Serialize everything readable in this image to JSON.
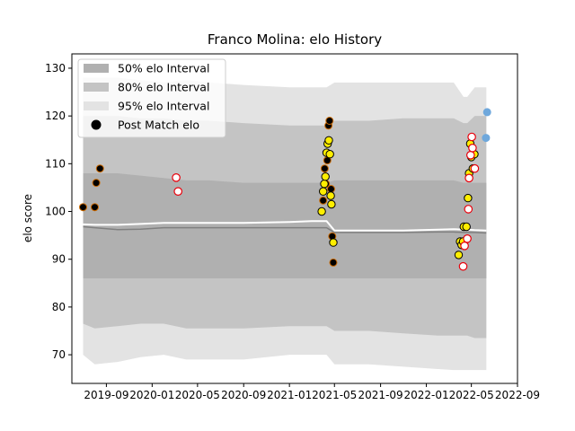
{
  "chart_data": {
    "type": "scatter",
    "title": "Franco Molina: elo History",
    "xlabel": "",
    "ylabel": "elo score",
    "xlim": [
      "2019-06-01",
      "2022-09-01"
    ],
    "ylim": [
      64,
      133
    ],
    "x_ticks": [
      "2019-09-01",
      "2020-01-01",
      "2020-05-01",
      "2020-09-01",
      "2021-01-01",
      "2021-05-01",
      "2021-09-01",
      "2022-01-01",
      "2022-05-01",
      "2022-09-01"
    ],
    "x_tick_labels": [
      "2019-09",
      "2020-01",
      "2020-05",
      "2020-09",
      "2021-01",
      "2021-05",
      "2021-09",
      "2022-01",
      "2022-05",
      "2022-09"
    ],
    "y_ticks": [
      70,
      80,
      90,
      100,
      110,
      120,
      130
    ],
    "legend": {
      "placement": "top-left",
      "entries": [
        {
          "label": "50% elo Interval",
          "color": "#b0b0b0"
        },
        {
          "label": "80% elo Interval",
          "color": "#c4c4c4"
        },
        {
          "label": "95% elo Interval",
          "color": "#e3e3e3"
        },
        {
          "label": "Post Match elo",
          "color": "#000000"
        }
      ]
    },
    "colors": {
      "band95": "#e3e3e3",
      "band80": "#c4c4c4",
      "band50": "#b0b0b0",
      "mean_line": "#ffffff",
      "median_line": "#808080",
      "yellow_fill": "#ffee00",
      "orange_edge": "#cc6a00",
      "red_edge": "#e8000b",
      "projection": "#6fa8dc"
    },
    "band_dates": [
      "2019-07-01",
      "2019-08-01",
      "2019-10-01",
      "2019-12-01",
      "2020-02-01",
      "2020-04-01",
      "2020-06-01",
      "2020-09-01",
      "2021-01-01",
      "2021-03-01",
      "2021-04-10",
      "2021-05-01",
      "2021-08-01",
      "2021-11-01",
      "2022-02-01",
      "2022-03-15",
      "2022-04-10",
      "2022-04-20",
      "2022-05-10",
      "2022-06-10"
    ],
    "band95_upper": [
      128,
      128,
      128,
      127.5,
      127,
      127.5,
      127,
      126.5,
      126,
      126,
      126,
      127,
      127,
      127,
      127,
      127,
      124,
      124,
      126,
      126
    ],
    "band95_lower": [
      70,
      68,
      68.5,
      69.5,
      70,
      69,
      69,
      69,
      70,
      70,
      70,
      68,
      68,
      67.5,
      67,
      66.8,
      66.8,
      66.8,
      66.8,
      66.8
    ],
    "band80_upper": [
      120,
      120,
      120,
      119.5,
      119.5,
      119,
      119,
      118.5,
      118,
      118,
      118,
      119,
      119,
      119.5,
      119.5,
      119.5,
      118.5,
      118.5,
      120,
      120
    ],
    "band80_lower": [
      76.5,
      75.5,
      76,
      76.5,
      76.5,
      75.5,
      75.5,
      75.5,
      76,
      76,
      76,
      75,
      75,
      74.5,
      74,
      74,
      74,
      74,
      73.5,
      73.5
    ],
    "band50_upper": [
      108,
      108,
      108,
      107.5,
      107,
      106.5,
      106.5,
      106,
      106,
      106,
      106,
      106.5,
      106.5,
      106.5,
      106.5,
      106.5,
      106,
      106,
      106,
      106
    ],
    "band50_lower": [
      86,
      86,
      86,
      86,
      86,
      86,
      86,
      86,
      86,
      86,
      86,
      86,
      86,
      86,
      86,
      86,
      86,
      86,
      86,
      86
    ],
    "mean_line": [
      97.3,
      97.2,
      97.2,
      97.4,
      97.6,
      97.6,
      97.6,
      97.6,
      97.8,
      98,
      98,
      96,
      96,
      96,
      96.2,
      96.3,
      96.2,
      96.2,
      96.1,
      96
    ],
    "median_line": [
      96.8,
      96.6,
      96.2,
      96.3,
      96.6,
      96.6,
      96.6,
      96.6,
      96.6,
      96.6,
      96.6,
      95.6,
      95.6,
      95.6,
      95.7,
      95.7,
      95.6,
      95.6,
      95.6,
      95.5
    ],
    "series": [
      {
        "style": "orange-edge",
        "points": [
          {
            "x": "2019-07-01",
            "y": 100.9
          },
          {
            "x": "2019-08-01",
            "y": 100.9
          },
          {
            "x": "2019-08-05",
            "y": 106
          },
          {
            "x": "2019-08-15",
            "y": 109
          },
          {
            "x": "2021-04-01",
            "y": 102.3
          },
          {
            "x": "2021-04-05",
            "y": 109
          },
          {
            "x": "2021-04-08",
            "y": 105.8
          },
          {
            "x": "2021-04-12",
            "y": 110.7
          },
          {
            "x": "2021-04-15",
            "y": 118
          },
          {
            "x": "2021-04-18",
            "y": 119
          },
          {
            "x": "2021-04-22",
            "y": 104.7
          },
          {
            "x": "2021-04-25",
            "y": 94.8
          },
          {
            "x": "2021-04-28",
            "y": 89.3
          }
        ]
      },
      {
        "style": "yellow-black",
        "points": [
          {
            "x": "2021-03-28",
            "y": 100
          },
          {
            "x": "2021-04-01",
            "y": 104.2
          },
          {
            "x": "2021-04-04",
            "y": 105.8
          },
          {
            "x": "2021-04-07",
            "y": 107.3
          },
          {
            "x": "2021-04-10",
            "y": 112.3
          },
          {
            "x": "2021-04-13",
            "y": 114.2
          },
          {
            "x": "2021-04-16",
            "y": 114.9
          },
          {
            "x": "2021-04-19",
            "y": 112
          },
          {
            "x": "2021-04-21",
            "y": 103.3
          },
          {
            "x": "2021-04-23",
            "y": 101.5
          },
          {
            "x": "2021-04-28",
            "y": 93.5
          },
          {
            "x": "2022-03-28",
            "y": 90.9
          },
          {
            "x": "2022-04-01",
            "y": 93.7
          },
          {
            "x": "2022-04-05",
            "y": 93
          },
          {
            "x": "2022-04-09",
            "y": 93.7
          },
          {
            "x": "2022-04-11",
            "y": 96.8
          },
          {
            "x": "2022-04-18",
            "y": 96.8
          },
          {
            "x": "2022-04-22",
            "y": 102.8
          },
          {
            "x": "2022-04-25",
            "y": 108
          },
          {
            "x": "2022-04-28",
            "y": 114.2
          },
          {
            "x": "2022-05-01",
            "y": 111.4
          },
          {
            "x": "2022-05-05",
            "y": 109
          },
          {
            "x": "2022-05-09",
            "y": 112
          }
        ]
      },
      {
        "style": "red-white",
        "points": [
          {
            "x": "2020-03-05",
            "y": 107.1
          },
          {
            "x": "2020-03-10",
            "y": 104.2
          },
          {
            "x": "2022-04-09",
            "y": 88.5
          },
          {
            "x": "2022-04-13",
            "y": 92.8
          },
          {
            "x": "2022-04-20",
            "y": 94.3
          },
          {
            "x": "2022-04-23",
            "y": 100.5
          },
          {
            "x": "2022-04-25",
            "y": 107
          },
          {
            "x": "2022-04-29",
            "y": 111.8
          },
          {
            "x": "2022-05-02",
            "y": 115.6
          },
          {
            "x": "2022-05-04",
            "y": 113.3
          },
          {
            "x": "2022-05-10",
            "y": 109
          }
        ]
      },
      {
        "style": "projection",
        "points": [
          {
            "x": "2022-06-09",
            "y": 115.4
          },
          {
            "x": "2022-06-12",
            "y": 120.8
          }
        ]
      }
    ]
  }
}
